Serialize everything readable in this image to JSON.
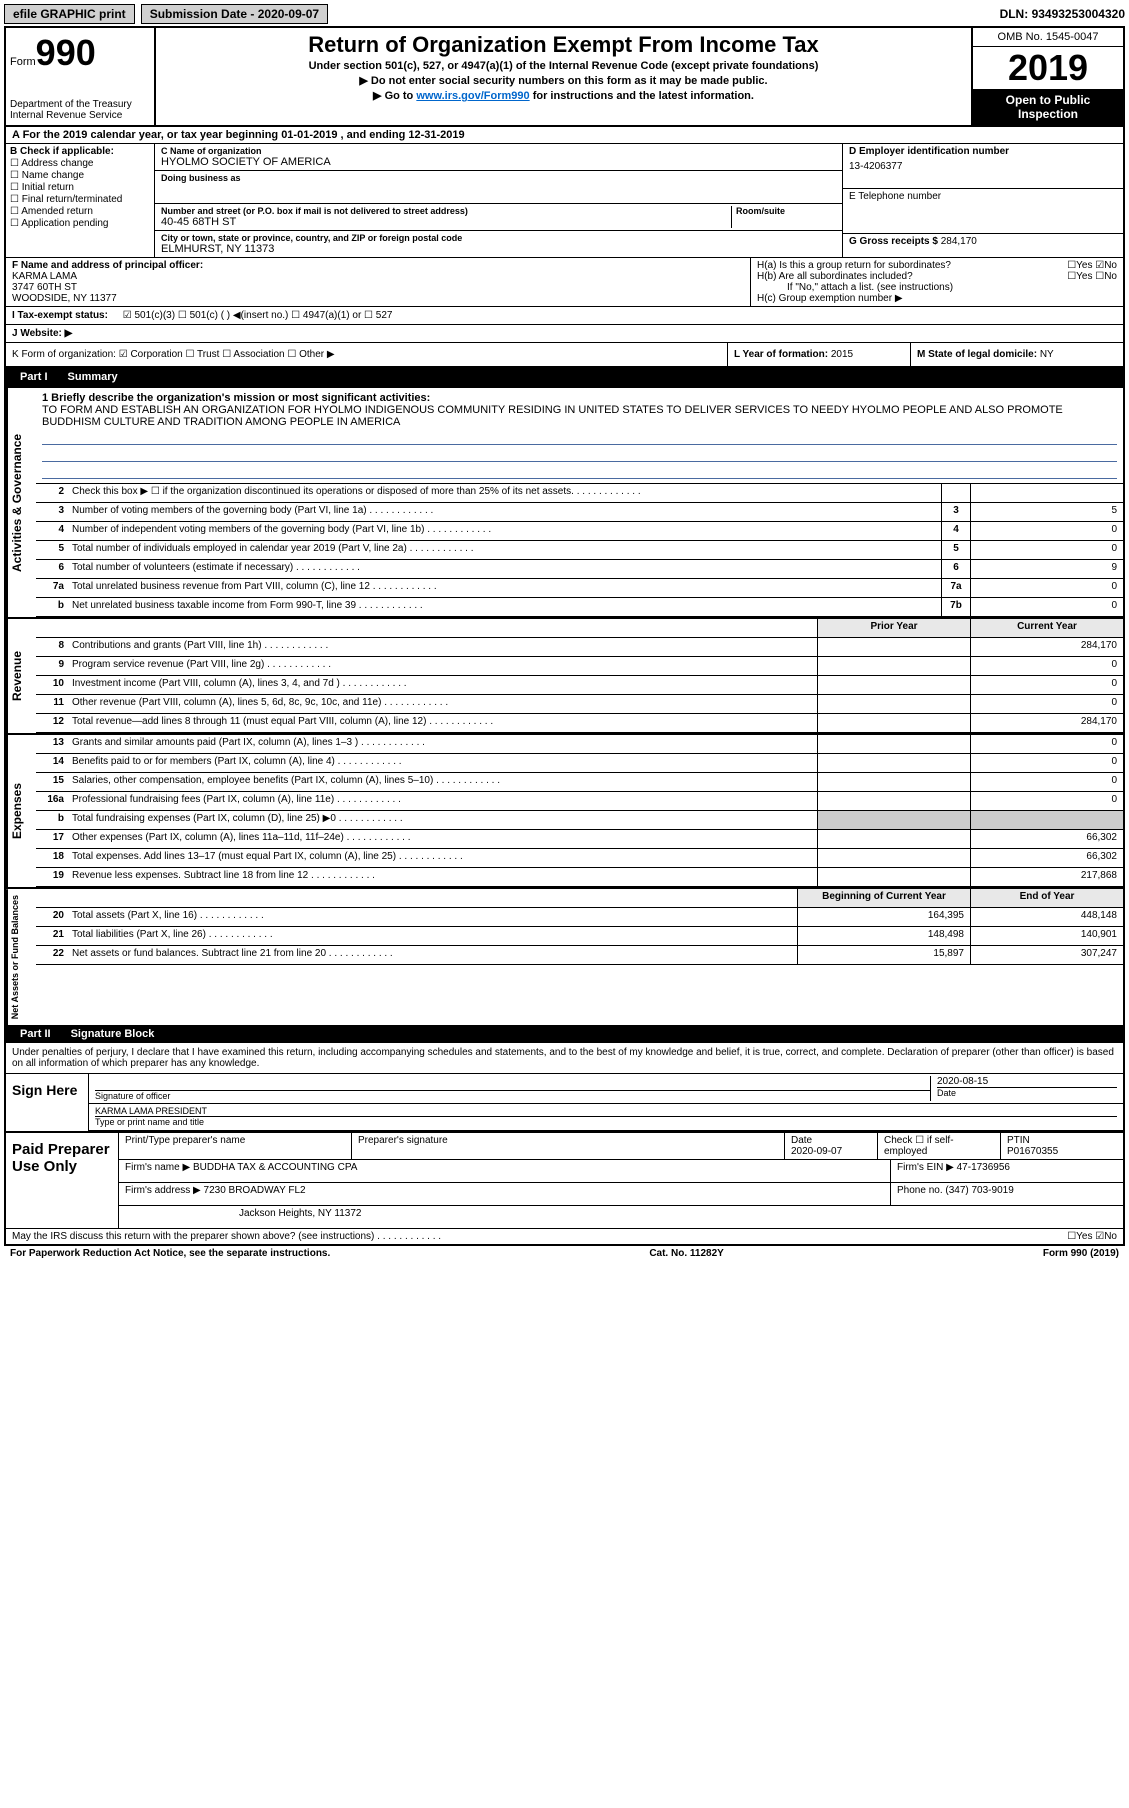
{
  "topbar": {
    "efile": "efile GRAPHIC print",
    "sub_label": "Submission Date - ",
    "sub_date": "2020-09-07",
    "dln_label": "DLN: ",
    "dln": "93493253004320"
  },
  "header": {
    "form_word": "Form",
    "form_num": "990",
    "dept": "Department of the Treasury\nInternal Revenue Service",
    "title": "Return of Organization Exempt From Income Tax",
    "subtitle": "Under section 501(c), 527, or 4947(a)(1) of the Internal Revenue Code (except private foundations)",
    "instr1": "▶ Do not enter social security numbers on this form as it may be made public.",
    "instr2_pre": "▶ Go to ",
    "instr2_link": "www.irs.gov/Form990",
    "instr2_post": " for instructions and the latest information.",
    "omb": "OMB No. 1545-0047",
    "year": "2019",
    "open": "Open to Public Inspection"
  },
  "line_a": "A For the 2019 calendar year, or tax year beginning 01-01-2019    , and ending 12-31-2019",
  "col_b": {
    "head": "B Check if applicable:",
    "opts": [
      "Address change",
      "Name change",
      "Initial return",
      "Final return/terminated",
      "Amended return",
      "Application pending"
    ]
  },
  "col_c": {
    "name_label": "C Name of organization",
    "name": "HYOLMO SOCIETY OF AMERICA",
    "dba_label": "Doing business as",
    "dba": "",
    "street_label": "Number and street (or P.O. box if mail is not delivered to street address)",
    "room_label": "Room/suite",
    "street": "40-45 68TH ST",
    "city_label": "City or town, state or province, country, and ZIP or foreign postal code",
    "city": "ELMHURST, NY  11373"
  },
  "col_de": {
    "d_label": "D Employer identification number",
    "ein": "13-4206377",
    "e_label": "E Telephone number",
    "phone": "",
    "g_label": "G Gross receipts $ ",
    "gross": "284,170"
  },
  "f": {
    "label": "F  Name and address of principal officer:",
    "name": "KARMA LAMA",
    "street": "3747 60TH ST",
    "city": "WOODSIDE, NY  11377"
  },
  "h": {
    "a": "H(a)  Is this a group return for subordinates?",
    "a_ans": "☐Yes ☑No",
    "b": "H(b)  Are all subordinates included?",
    "b_ans": "☐Yes ☐No",
    "b_note": "If \"No,\" attach a list. (see instructions)",
    "c": "H(c)  Group exemption number ▶"
  },
  "i": {
    "label": "I    Tax-exempt status:",
    "opts": "☑ 501(c)(3)   ☐ 501(c) (  ) ◀(insert no.)   ☐ 4947(a)(1) or   ☐ 527"
  },
  "j": {
    "label": "J   Website: ▶",
    "val": ""
  },
  "k": {
    "label": "K Form of organization:  ☑ Corporation  ☐ Trust  ☐ Association  ☐ Other ▶"
  },
  "l": {
    "label": "L Year of formation: ",
    "val": "2015"
  },
  "m": {
    "label": "M State of legal domicile: ",
    "val": "NY"
  },
  "part1": {
    "label": "Part I",
    "title": "Summary"
  },
  "mission": {
    "q": "1  Briefly describe the organization's mission or most significant activities:",
    "text": "TO FORM AND ESTABLISH AN ORGANIZATION FOR HYOLMO INDIGENOUS COMMUNITY RESIDING IN UNITED STATES TO DELIVER SERVICES TO NEEDY HYOLMO PEOPLE AND ALSO PROMOTE BUDDHISM CULTURE AND TRADITION AMONG PEOPLE IN AMERICA"
  },
  "gov_lines": [
    {
      "n": "2",
      "d": "Check this box ▶ ☐ if the organization discontinued its operations or disposed of more than 25% of its net assets.",
      "box": "",
      "v": ""
    },
    {
      "n": "3",
      "d": "Number of voting members of the governing body (Part VI, line 1a)",
      "box": "3",
      "v": "5"
    },
    {
      "n": "4",
      "d": "Number of independent voting members of the governing body (Part VI, line 1b)",
      "box": "4",
      "v": "0"
    },
    {
      "n": "5",
      "d": "Total number of individuals employed in calendar year 2019 (Part V, line 2a)",
      "box": "5",
      "v": "0"
    },
    {
      "n": "6",
      "d": "Total number of volunteers (estimate if necessary)",
      "box": "6",
      "v": "9"
    },
    {
      "n": "7a",
      "d": "Total unrelated business revenue from Part VIII, column (C), line 12",
      "box": "7a",
      "v": "0"
    },
    {
      "n": "b",
      "d": "Net unrelated business taxable income from Form 990-T, line 39",
      "box": "7b",
      "v": "0"
    }
  ],
  "rev_head": {
    "prior": "Prior Year",
    "curr": "Current Year"
  },
  "rev_lines": [
    {
      "n": "8",
      "d": "Contributions and grants (Part VIII, line 1h)",
      "p": "",
      "c": "284,170"
    },
    {
      "n": "9",
      "d": "Program service revenue (Part VIII, line 2g)",
      "p": "",
      "c": "0"
    },
    {
      "n": "10",
      "d": "Investment income (Part VIII, column (A), lines 3, 4, and 7d )",
      "p": "",
      "c": "0"
    },
    {
      "n": "11",
      "d": "Other revenue (Part VIII, column (A), lines 5, 6d, 8c, 9c, 10c, and 11e)",
      "p": "",
      "c": "0"
    },
    {
      "n": "12",
      "d": "Total revenue—add lines 8 through 11 (must equal Part VIII, column (A), line 12)",
      "p": "",
      "c": "284,170"
    }
  ],
  "exp_lines": [
    {
      "n": "13",
      "d": "Grants and similar amounts paid (Part IX, column (A), lines 1–3 )",
      "p": "",
      "c": "0"
    },
    {
      "n": "14",
      "d": "Benefits paid to or for members (Part IX, column (A), line 4)",
      "p": "",
      "c": "0"
    },
    {
      "n": "15",
      "d": "Salaries, other compensation, employee benefits (Part IX, column (A), lines 5–10)",
      "p": "",
      "c": "0"
    },
    {
      "n": "16a",
      "d": "Professional fundraising fees (Part IX, column (A), line 11e)",
      "p": "",
      "c": "0"
    },
    {
      "n": "b",
      "d": "Total fundraising expenses (Part IX, column (D), line 25) ▶0",
      "p": "shaded",
      "c": "shaded"
    },
    {
      "n": "17",
      "d": "Other expenses (Part IX, column (A), lines 11a–11d, 11f–24e)",
      "p": "",
      "c": "66,302"
    },
    {
      "n": "18",
      "d": "Total expenses. Add lines 13–17 (must equal Part IX, column (A), line 25)",
      "p": "",
      "c": "66,302"
    },
    {
      "n": "19",
      "d": "Revenue less expenses. Subtract line 18 from line 12",
      "p": "",
      "c": "217,868"
    }
  ],
  "net_head": {
    "prior": "Beginning of Current Year",
    "curr": "End of Year"
  },
  "net_lines": [
    {
      "n": "20",
      "d": "Total assets (Part X, line 16)",
      "p": "164,395",
      "c": "448,148"
    },
    {
      "n": "21",
      "d": "Total liabilities (Part X, line 26)",
      "p": "148,498",
      "c": "140,901"
    },
    {
      "n": "22",
      "d": "Net assets or fund balances. Subtract line 21 from line 20",
      "p": "15,897",
      "c": "307,247"
    }
  ],
  "side_labels": {
    "gov": "Activities & Governance",
    "rev": "Revenue",
    "exp": "Expenses",
    "net": "Net Assets or Fund Balances"
  },
  "part2": {
    "label": "Part II",
    "title": "Signature Block"
  },
  "sig": {
    "decl": "Under penalties of perjury, I declare that I have examined this return, including accompanying schedules and statements, and to the best of my knowledge and belief, it is true, correct, and complete. Declaration of preparer (other than officer) is based on all information of which preparer has any knowledge.",
    "sign_here": "Sign Here",
    "sig_officer": "Signature of officer",
    "date": "2020-08-15",
    "date_label": "Date",
    "name_title": "KARMA LAMA  PRESIDENT",
    "name_label": "Type or print name and title"
  },
  "prep": {
    "label": "Paid Preparer Use Only",
    "print_label": "Print/Type preparer's name",
    "prep_sig_label": "Preparer's signature",
    "date_label": "Date",
    "date": "2020-09-07",
    "check_label": "Check ☐ if self-employed",
    "ptin_label": "PTIN",
    "ptin": "P01670355",
    "firm_name_label": "Firm's name    ▶ ",
    "firm_name": "BUDDHA TAX & ACCOUNTING CPA",
    "firm_ein_label": "Firm's EIN ▶ ",
    "firm_ein": "47-1736956",
    "firm_addr_label": "Firm's address ▶ ",
    "firm_addr1": "7230 BROADWAY FL2",
    "firm_addr2": "Jackson Heights, NY  11372",
    "phone_label": "Phone no. ",
    "phone": "(347) 703-9019"
  },
  "discuss": {
    "q": "May the IRS discuss this return with the preparer shown above? (see instructions)",
    "ans": "☐Yes ☑No"
  },
  "footer": {
    "left": "For Paperwork Reduction Act Notice, see the separate instructions.",
    "mid": "Cat. No. 11282Y",
    "right": "Form 990 (2019)"
  }
}
